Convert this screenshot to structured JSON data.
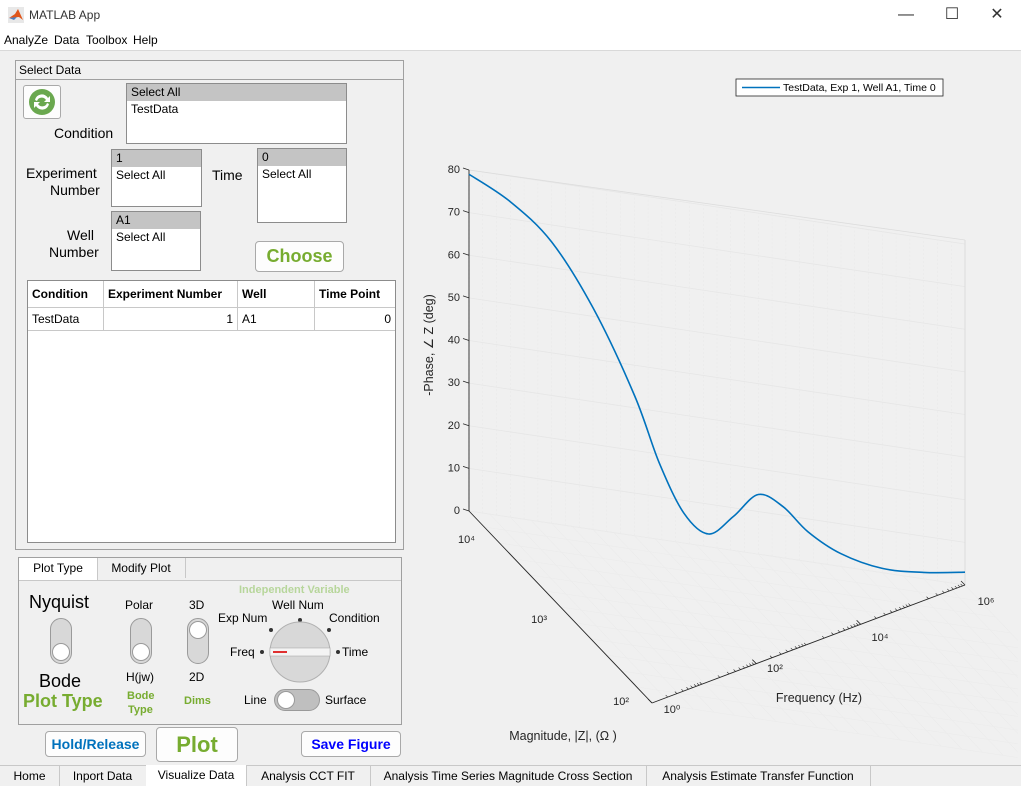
{
  "window": {
    "title": "MATLAB App",
    "minimize": "—",
    "maximize": "☐",
    "close": "✕"
  },
  "menu": [
    "AnalyZe",
    "Data",
    "Toolbox",
    "Help"
  ],
  "select_panel": {
    "title": "Select Data",
    "condition_label": "Condition",
    "condition_items": [
      "Select All",
      "TestData"
    ],
    "experiment_label_1": "Experiment",
    "experiment_label_2": "Number",
    "experiment_items": [
      "1",
      "Select All"
    ],
    "time_label": "Time",
    "time_items": [
      "0",
      "Select All"
    ],
    "well_label_1": "Well",
    "well_label_2": "Number",
    "well_items": [
      "A1",
      "Select All"
    ],
    "choose_button": "Choose",
    "refresh_icon": "refresh-icon"
  },
  "table": {
    "headers": [
      "Condition",
      "Experiment Number",
      "Well",
      "Time Point"
    ],
    "rows": [
      [
        "TestData",
        "1",
        "A1",
        "0"
      ]
    ]
  },
  "plot_panel": {
    "tabs": [
      "Plot Type",
      "Modify Plot"
    ],
    "nyquist": "Nyquist",
    "bode": "Bode",
    "plot_type_label": "Plot Type",
    "polar": "Polar",
    "hjw": "H(jw)",
    "bode_type_label_1": "Bode",
    "bode_type_label_2": "Type",
    "three_d": "3D",
    "two_d": "2D",
    "dims_label": "Dims",
    "indep_label": "Independent Variable",
    "well_num": "Well Num",
    "exp_num": "Exp Num",
    "condition": "Condition",
    "freq": "Freq",
    "time": "Time",
    "line": "Line",
    "surface": "Surface"
  },
  "buttons": {
    "hold": "Hold/Release",
    "plot": "Plot",
    "save": "Save Figure"
  },
  "chart_data": {
    "type": "line",
    "legend": "TestData, Exp 1, Well A1, Time 0",
    "legend_position": "top-right",
    "zlabel": "-Phase,  ∠ Z  (deg)",
    "xlabel": "Frequency (Hz)",
    "ylabel": "Magnitude,  |Z|,  (Ω  )",
    "z_ticks": [
      "0",
      "10",
      "20",
      "30",
      "40",
      "50",
      "60",
      "70",
      "80"
    ],
    "freq_ticks": [
      "10⁰",
      "10²",
      "10⁴",
      "10⁶"
    ],
    "mag_ticks": [
      "10²",
      "10³",
      "10⁴"
    ],
    "grid": true,
    "series": [
      {
        "name": "TestData, Exp 1, Well A1, Time 0",
        "color": "#0072bd",
        "freq_log10": [
          0,
          0.5,
          1,
          1.5,
          2,
          2.3,
          2.6,
          2.9,
          3.2,
          3.5,
          3.8,
          4.1,
          4.5,
          5,
          5.5,
          6
        ],
        "phase_deg": [
          79,
          74,
          66,
          52,
          33,
          18,
          7,
          3,
          8,
          14,
          12,
          7,
          3,
          1,
          1.5,
          3
        ]
      }
    ]
  },
  "bottom_tabs": [
    "Home",
    "Inport Data",
    "Visualize Data",
    "Analysis CCT FIT",
    "Analysis Time Series Magnitude Cross Section",
    "Analysis Estimate Transfer Function"
  ],
  "colors": {
    "accent_green": "#77ac30",
    "button_blue": "#0072bd",
    "save_blue": "#0000ff",
    "line_blue": "#0072bd"
  }
}
